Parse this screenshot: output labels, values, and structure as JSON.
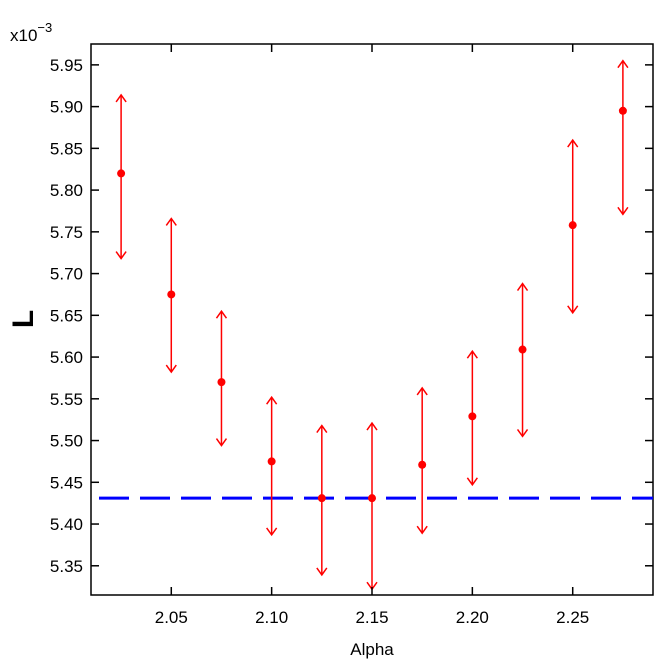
{
  "chart_data": {
    "type": "scatter",
    "xlabel": "Alpha",
    "ylabel": "L",
    "y_multiplier_base": "x10",
    "y_multiplier_exp": "−3",
    "xlim": [
      2.01,
      2.29
    ],
    "ylim": [
      5.315,
      5.975
    ],
    "x_ticks": [
      2.05,
      2.1,
      2.15,
      2.2,
      2.25
    ],
    "x_tick_labels": [
      "2.05",
      "2.10",
      "2.15",
      "2.20",
      "2.25"
    ],
    "y_ticks": [
      5.35,
      5.4,
      5.45,
      5.5,
      5.55,
      5.6,
      5.65,
      5.7,
      5.75,
      5.8,
      5.85,
      5.9,
      5.95
    ],
    "y_tick_labels": [
      "5.35",
      "5.40",
      "5.45",
      "5.50",
      "5.55",
      "5.60",
      "5.65",
      "5.70",
      "5.75",
      "5.80",
      "5.85",
      "5.90",
      "5.95"
    ],
    "points": [
      {
        "x": 2.025,
        "y": 5.82,
        "low": 5.718,
        "high": 5.914
      },
      {
        "x": 2.05,
        "y": 5.675,
        "low": 5.582,
        "high": 5.766
      },
      {
        "x": 2.075,
        "y": 5.57,
        "low": 5.494,
        "high": 5.655
      },
      {
        "x": 2.1,
        "y": 5.475,
        "low": 5.387,
        "high": 5.552
      },
      {
        "x": 2.125,
        "y": 5.431,
        "low": 5.339,
        "high": 5.518
      },
      {
        "x": 2.15,
        "y": 5.431,
        "low": 5.322,
        "high": 5.521
      },
      {
        "x": 2.175,
        "y": 5.471,
        "low": 5.389,
        "high": 5.563
      },
      {
        "x": 2.2,
        "y": 5.529,
        "low": 5.447,
        "high": 5.607
      },
      {
        "x": 2.225,
        "y": 5.609,
        "low": 5.505,
        "high": 5.688
      },
      {
        "x": 2.25,
        "y": 5.758,
        "low": 5.653,
        "high": 5.86
      },
      {
        "x": 2.275,
        "y": 5.895,
        "low": 5.771,
        "high": 5.955
      }
    ],
    "reference_line": {
      "y": 5.431,
      "style": "dashed"
    },
    "colors": {
      "points": "#ff0000",
      "reference": "#0000ff",
      "axes": "#000000"
    },
    "grid": false
  }
}
